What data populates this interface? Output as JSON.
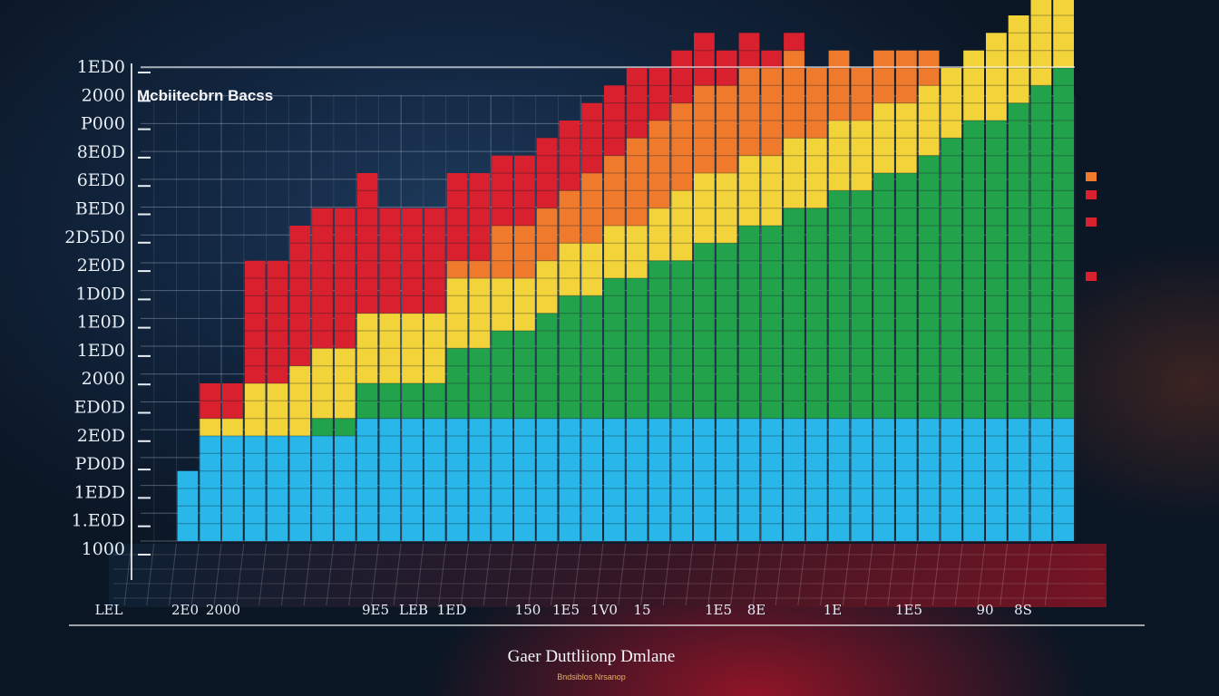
{
  "chart_data": {
    "type": "bar",
    "title": "Mcbiitecbrn Bacss",
    "xlabel": "Gaer Duttliionp Dmlane",
    "subtitle": "Bndsiblos Nrsanop",
    "ylabel": "",
    "y_ticks": [
      "1ED0",
      "2000",
      "P000",
      "8E0D",
      "6ED0",
      "BED0",
      "2D5D0",
      "2E0D",
      "1D0D",
      "1E0D",
      "1ED0",
      "2000",
      "ED0D",
      "2E0D",
      "PD0D",
      "1EDD",
      "1.E0D",
      "1000"
    ],
    "x_ticks": [
      "LEL",
      "2E0",
      "2000",
      "9E5",
      "LEB",
      "1ED",
      "150",
      "1E5",
      "1V0",
      "15",
      "1E5",
      "8E",
      "1E",
      "1E5",
      "90",
      "8S"
    ],
    "x_tick_pos": [
      0,
      2,
      3,
      7,
      8,
      9,
      11,
      12,
      13,
      14,
      16,
      17,
      19,
      21,
      23,
      24
    ],
    "ylim": [
      0,
      27
    ],
    "grid": true,
    "colors": {
      "blue": "#29b6e8",
      "green": "#22a24a",
      "yellow": "#f3d33a",
      "orange": "#f07a2c",
      "red": "#d8202e"
    },
    "series": [
      {
        "values": [
          0,
          0,
          4,
          6,
          6,
          6,
          6,
          6,
          6,
          6,
          7,
          7,
          7,
          7,
          7,
          7,
          7,
          7,
          7,
          7,
          7,
          7,
          7,
          7,
          7,
          7,
          7,
          7,
          7,
          7,
          7,
          7,
          7,
          7,
          7,
          7,
          7,
          7,
          7,
          7,
          7,
          7
        ]
      },
      {
        "values": [
          0,
          0,
          0,
          0,
          0,
          0,
          0,
          0,
          1,
          1,
          2,
          2,
          2,
          2,
          4,
          4,
          5,
          5,
          6,
          7,
          7,
          8,
          8,
          9,
          9,
          10,
          10,
          11,
          11,
          12,
          12,
          13,
          13,
          14,
          14,
          15,
          16,
          17,
          17,
          18,
          19,
          20
        ]
      },
      {
        "values": [
          0,
          0,
          0,
          1,
          1,
          3,
          3,
          4,
          4,
          4,
          4,
          4,
          4,
          4,
          4,
          4,
          3,
          3,
          3,
          3,
          3,
          3,
          3,
          3,
          4,
          4,
          4,
          4,
          4,
          4,
          4,
          4,
          4,
          4,
          4,
          4,
          4,
          4,
          5,
          5,
          5,
          5
        ]
      },
      {
        "values": [
          0,
          0,
          0,
          0,
          0,
          0,
          0,
          0,
          0,
          0,
          0,
          0,
          0,
          0,
          1,
          1,
          3,
          3,
          3,
          3,
          4,
          4,
          5,
          5,
          5,
          5,
          5,
          5,
          5,
          5,
          4,
          4,
          3,
          3,
          3,
          2,
          0,
          0,
          0,
          0,
          0,
          0
        ]
      },
      {
        "values": [
          0,
          0,
          0,
          2,
          2,
          7,
          7,
          8,
          8,
          8,
          8,
          6,
          6,
          6,
          5,
          5,
          4,
          4,
          4,
          4,
          4,
          4,
          4,
          3,
          3,
          3,
          2,
          2,
          1,
          1,
          0,
          0,
          0,
          0,
          0,
          0,
          0,
          0,
          0,
          0,
          0,
          0
        ]
      }
    ]
  }
}
